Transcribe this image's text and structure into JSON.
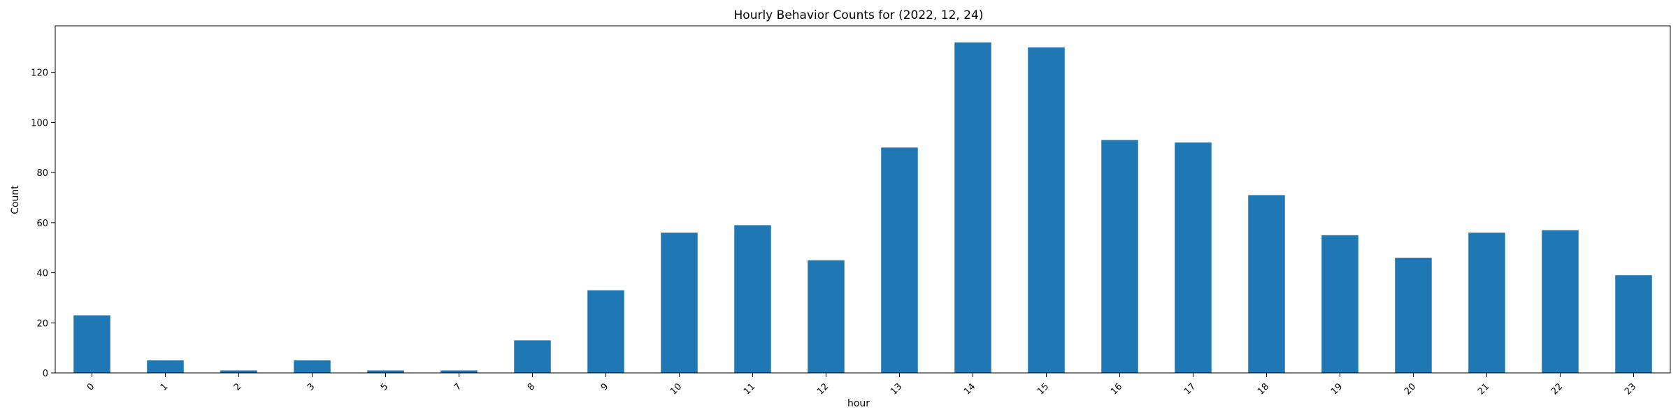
{
  "chart_data": {
    "type": "bar",
    "title": "Hourly Behavior Counts for (2022, 12, 24)",
    "xlabel": "hour",
    "ylabel": "Count",
    "categories": [
      "0",
      "1",
      "2",
      "3",
      "5",
      "7",
      "8",
      "9",
      "10",
      "11",
      "12",
      "13",
      "14",
      "15",
      "16",
      "17",
      "18",
      "19",
      "20",
      "21",
      "22",
      "23"
    ],
    "values": [
      23,
      5,
      1,
      5,
      1,
      1,
      13,
      33,
      56,
      59,
      45,
      90,
      132,
      130,
      93,
      92,
      71,
      55,
      46,
      56,
      57,
      39
    ],
    "ylim": [
      0,
      138.6
    ],
    "yticks": [
      0,
      20,
      40,
      60,
      80,
      100,
      120
    ],
    "bar_color": "#1f77b4",
    "grid": false,
    "legend": "none"
  }
}
